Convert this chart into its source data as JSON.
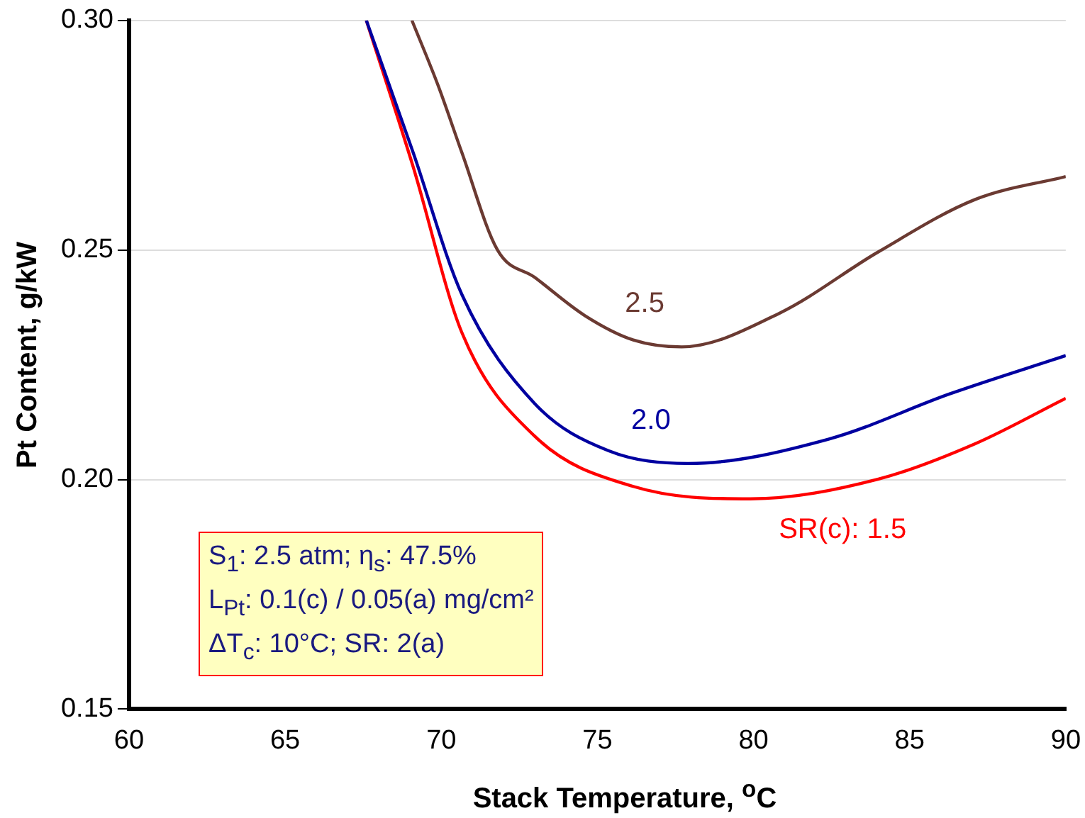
{
  "chart_data": {
    "type": "line",
    "xlabel": "Stack Temperature, $^{o}$C",
    "ylabel": "Pt Content, g/kW",
    "xlim": [
      60,
      90
    ],
    "xticks": [
      60,
      65,
      70,
      75,
      80,
      85,
      90
    ],
    "ylim": [
      0.15,
      0.3
    ],
    "yticks": [
      0.15,
      {
        "value": 0.2,
        "label": "0.20"
      },
      0.25,
      {
        "value": 0.3,
        "label": "0.30"
      }
    ],
    "grid": "y",
    "marker": "none",
    "line_style": "solid",
    "series": [
      {
        "name": "2.5",
        "color": "#6b3a32",
        "x": [
          69.06,
          69.9,
          70.66,
          71.8,
          73.0,
          74.6,
          76.15,
          77.7,
          80.85,
          84.0,
          87.1,
          90
        ],
        "values": [
          0.3,
          0.2858,
          0.2712,
          0.25,
          0.244,
          0.2357,
          0.2304,
          0.2289,
          0.2363,
          0.2496,
          0.261,
          0.266
        ]
      },
      {
        "name": "2.0",
        "color": "#0000a0",
        "x": [
          67.6,
          69.1,
          70.66,
          73.0,
          75.35,
          77.9,
          82.4,
          86.3,
          90
        ],
        "values": [
          0.3,
          0.2712,
          0.2403,
          0.2165,
          0.2063,
          0.2035,
          0.2088,
          0.2187,
          0.227
        ]
      },
      {
        "name": "SR(c): 1.5",
        "color": "#ff0000",
        "x": [
          67.6,
          69.1,
          70.66,
          73.0,
          76.15,
          79.9,
          84.0,
          87.1,
          90
        ],
        "values": [
          0.3,
          0.2681,
          0.232,
          0.2094,
          0.1985,
          0.1958,
          0.2001,
          0.2078,
          0.2177
        ]
      }
    ],
    "annotations": [
      "S$_{1}$: 2.5 atm; η$_{s}$: 47.5%",
      "L$_{Pt}$: 0.1(c) / 0.05(a) mg/cm²",
      "ΔT$_{c}$: 10°C; SR: 2(a)"
    ]
  }
}
